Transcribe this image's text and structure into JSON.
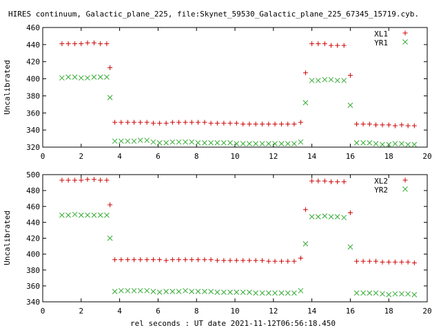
{
  "title": "HIRES continuum, Galactic_plane_225, file:Skynet_59530_Galactic_plane_225_67345_15719.cyb.",
  "colors": {
    "red": "#cc0000",
    "green": "#33aa33",
    "axis": "#000000"
  },
  "chart_data": [
    {
      "type": "scatter",
      "ylabel": "Uncalibrated",
      "xlim": [
        0,
        20
      ],
      "ylim": [
        320,
        460
      ],
      "xticks": [
        0,
        2,
        4,
        6,
        8,
        10,
        12,
        14,
        16,
        18,
        20
      ],
      "yticks": [
        320,
        340,
        360,
        380,
        400,
        420,
        440,
        460
      ],
      "grid": false,
      "legend": "top-right",
      "series": [
        {
          "name": "XL1",
          "marker": "plus",
          "color": "#cc0000",
          "x": [
            1.0,
            1.33,
            1.67,
            2.0,
            2.33,
            2.67,
            3.0,
            3.33,
            3.5,
            3.75,
            4.08,
            4.42,
            4.75,
            5.08,
            5.42,
            5.75,
            6.08,
            6.42,
            6.75,
            7.08,
            7.42,
            7.75,
            8.08,
            8.42,
            8.75,
            9.08,
            9.42,
            9.75,
            10.08,
            10.42,
            10.75,
            11.08,
            11.42,
            11.75,
            12.08,
            12.42,
            12.75,
            13.08,
            13.42,
            13.67,
            14.0,
            14.33,
            14.67,
            15.0,
            15.33,
            15.67,
            16.0,
            16.33,
            16.67,
            17.0,
            17.33,
            17.67,
            18.0,
            18.33,
            18.67,
            19.0,
            19.33
          ],
          "y": [
            441,
            441,
            441,
            441,
            442,
            442,
            441,
            441,
            413,
            349,
            349,
            349,
            349,
            349,
            349,
            348,
            348,
            348,
            349,
            349,
            349,
            349,
            349,
            349,
            348,
            348,
            348,
            348,
            348,
            347,
            347,
            347,
            347,
            347,
            347,
            347,
            347,
            347,
            349,
            407,
            441,
            441,
            441,
            439,
            439,
            439,
            404,
            347,
            347,
            347,
            346,
            346,
            346,
            345,
            346,
            345,
            345
          ]
        },
        {
          "name": "YR1",
          "marker": "cross",
          "color": "#33aa33",
          "x": [
            1.0,
            1.33,
            1.67,
            2.0,
            2.33,
            2.67,
            3.0,
            3.33,
            3.5,
            3.75,
            4.08,
            4.42,
            4.75,
            5.08,
            5.42,
            5.75,
            6.08,
            6.42,
            6.75,
            7.08,
            7.42,
            7.75,
            8.08,
            8.42,
            8.75,
            9.08,
            9.42,
            9.75,
            10.08,
            10.42,
            10.75,
            11.08,
            11.42,
            11.75,
            12.08,
            12.42,
            12.75,
            13.08,
            13.42,
            13.67,
            14.0,
            14.33,
            14.67,
            15.0,
            15.33,
            15.67,
            16.0,
            16.33,
            16.67,
            17.0,
            17.33,
            17.67,
            18.0,
            18.33,
            18.67,
            19.0,
            19.33
          ],
          "y": [
            401,
            402,
            402,
            401,
            401,
            402,
            402,
            402,
            378,
            327,
            327,
            327,
            327,
            328,
            328,
            326,
            325,
            325,
            326,
            326,
            326,
            326,
            325,
            325,
            325,
            325,
            325,
            325,
            324,
            324,
            324,
            324,
            324,
            324,
            324,
            324,
            324,
            324,
            326,
            372,
            398,
            398,
            399,
            399,
            398,
            398,
            369,
            325,
            325,
            325,
            324,
            323,
            323,
            324,
            324,
            323,
            323
          ]
        }
      ]
    },
    {
      "type": "scatter",
      "ylabel": "Uncalibrated",
      "xlabel": "rel seconds : UT date 2021-11-12T06:56:18.450",
      "xlim": [
        0,
        20
      ],
      "ylim": [
        340,
        500
      ],
      "xticks": [
        0,
        2,
        4,
        6,
        8,
        10,
        12,
        14,
        16,
        18,
        20
      ],
      "yticks": [
        340,
        360,
        380,
        400,
        420,
        440,
        460,
        480,
        500
      ],
      "grid": false,
      "legend": "top-right",
      "series": [
        {
          "name": "XL2",
          "marker": "plus",
          "color": "#cc0000",
          "x": [
            1.0,
            1.33,
            1.67,
            2.0,
            2.33,
            2.67,
            3.0,
            3.33,
            3.5,
            3.75,
            4.08,
            4.42,
            4.75,
            5.08,
            5.42,
            5.75,
            6.08,
            6.42,
            6.75,
            7.08,
            7.42,
            7.75,
            8.08,
            8.42,
            8.75,
            9.08,
            9.42,
            9.75,
            10.08,
            10.42,
            10.75,
            11.08,
            11.42,
            11.75,
            12.08,
            12.42,
            12.75,
            13.08,
            13.42,
            13.67,
            14.0,
            14.33,
            14.67,
            15.0,
            15.33,
            15.67,
            16.0,
            16.33,
            16.67,
            17.0,
            17.33,
            17.67,
            18.0,
            18.33,
            18.67,
            19.0,
            19.33
          ],
          "y": [
            493,
            493,
            493,
            493,
            494,
            494,
            493,
            493,
            462,
            393,
            393,
            393,
            393,
            393,
            393,
            393,
            393,
            392,
            393,
            393,
            393,
            393,
            393,
            393,
            393,
            392,
            392,
            392,
            392,
            392,
            392,
            392,
            392,
            391,
            391,
            391,
            391,
            391,
            395,
            456,
            492,
            492,
            492,
            491,
            491,
            491,
            452,
            391,
            391,
            391,
            391,
            390,
            390,
            390,
            390,
            390,
            389
          ]
        },
        {
          "name": "YR2",
          "marker": "cross",
          "color": "#33aa33",
          "x": [
            1.0,
            1.33,
            1.67,
            2.0,
            2.33,
            2.67,
            3.0,
            3.33,
            3.5,
            3.75,
            4.08,
            4.42,
            4.75,
            5.08,
            5.42,
            5.75,
            6.08,
            6.42,
            6.75,
            7.08,
            7.42,
            7.75,
            8.08,
            8.42,
            8.75,
            9.08,
            9.42,
            9.75,
            10.08,
            10.42,
            10.75,
            11.08,
            11.42,
            11.75,
            12.08,
            12.42,
            12.75,
            13.08,
            13.42,
            13.67,
            14.0,
            14.33,
            14.67,
            15.0,
            15.33,
            15.67,
            16.0,
            16.33,
            16.67,
            17.0,
            17.33,
            17.67,
            18.0,
            18.33,
            18.67,
            19.0,
            19.33
          ],
          "y": [
            449,
            449,
            450,
            449,
            449,
            449,
            449,
            449,
            420,
            353,
            354,
            354,
            354,
            354,
            354,
            353,
            352,
            353,
            353,
            353,
            354,
            353,
            353,
            353,
            353,
            352,
            352,
            352,
            352,
            352,
            352,
            351,
            351,
            351,
            351,
            351,
            351,
            351,
            354,
            413,
            447,
            447,
            448,
            447,
            447,
            446,
            409,
            351,
            351,
            351,
            351,
            350,
            349,
            350,
            350,
            350,
            349
          ]
        }
      ]
    }
  ]
}
